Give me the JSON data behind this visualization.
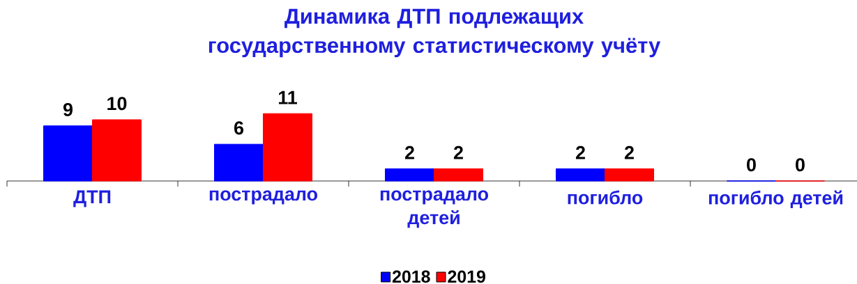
{
  "chart_data": {
    "type": "bar",
    "title": "Динамика ДТП подлежащих государственному статистическому учёту",
    "categories": [
      "ДТП",
      "пострадало",
      "пострадало детей",
      "погибло",
      "погибло детей"
    ],
    "series": [
      {
        "name": "2018",
        "color": "#0000ff",
        "values": [
          9,
          6,
          2,
          2,
          0
        ]
      },
      {
        "name": "2019",
        "color": "#ff0000",
        "values": [
          10,
          11,
          2,
          2,
          0
        ]
      }
    ],
    "data_labels": true,
    "legend": "bottom",
    "tick_labels": "x"
  }
}
